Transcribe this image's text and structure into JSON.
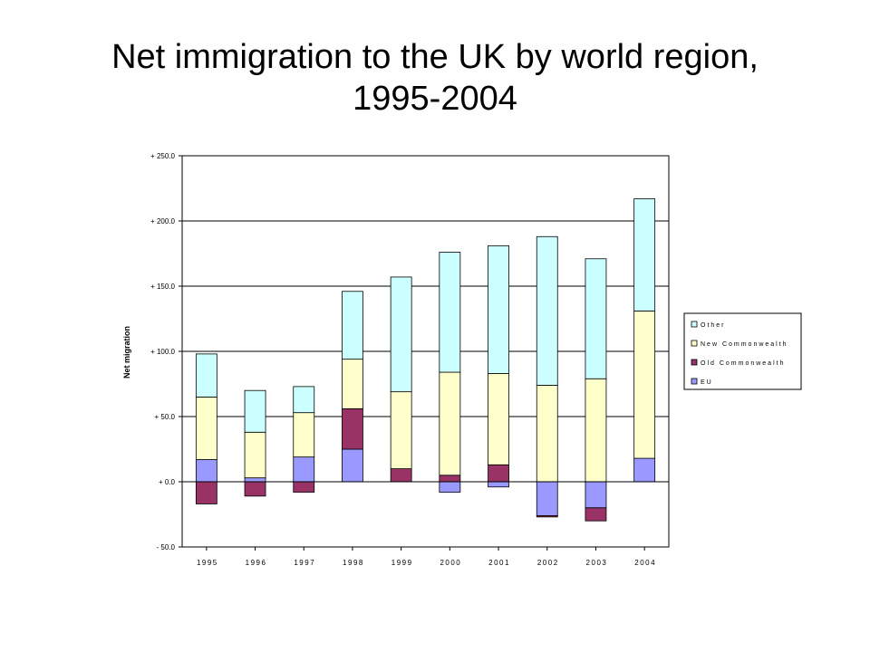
{
  "title_line1": "Net immigration to the UK by world region,",
  "title_line2": "1995-2004",
  "chart_data": {
    "type": "bar",
    "stacked": true,
    "categories": [
      "1995",
      "1996",
      "1997",
      "1998",
      "1999",
      "2000",
      "2001",
      "2002",
      "2003",
      "2004"
    ],
    "ylabel": "Net migration",
    "xlabel": "",
    "ylim": [
      -50,
      250
    ],
    "yticks": [
      250,
      200,
      150,
      100,
      50,
      0,
      -50
    ],
    "ytick_labels": [
      "+ 250.0",
      "+ 200.0",
      "+ 150.0",
      "+ 100.0",
      "+ 50.0",
      "+ 0.0",
      "- 50.0"
    ],
    "grid": true,
    "legend_position": "right",
    "series": [
      {
        "name": "EU",
        "color": "#9999ff",
        "values": [
          17,
          3,
          19,
          25,
          0,
          -8,
          -4,
          -26,
          -20,
          18
        ]
      },
      {
        "name": "Old Commonwealth",
        "color": "#993366",
        "values": [
          -17,
          -11,
          -8,
          31,
          10,
          5,
          13,
          -1,
          -10,
          0
        ]
      },
      {
        "name": "New Commonwealth",
        "color": "#ffffcc",
        "values": [
          48,
          35,
          34,
          38,
          59,
          79,
          70,
          74,
          79,
          113
        ]
      },
      {
        "name": "Other",
        "color": "#ccffff",
        "values": [
          33,
          32,
          20,
          52,
          88,
          92,
          98,
          114,
          92,
          86
        ]
      }
    ],
    "legend_order": [
      "Other",
      "New Commonwealth",
      "Old Commonwealth",
      "EU"
    ]
  }
}
